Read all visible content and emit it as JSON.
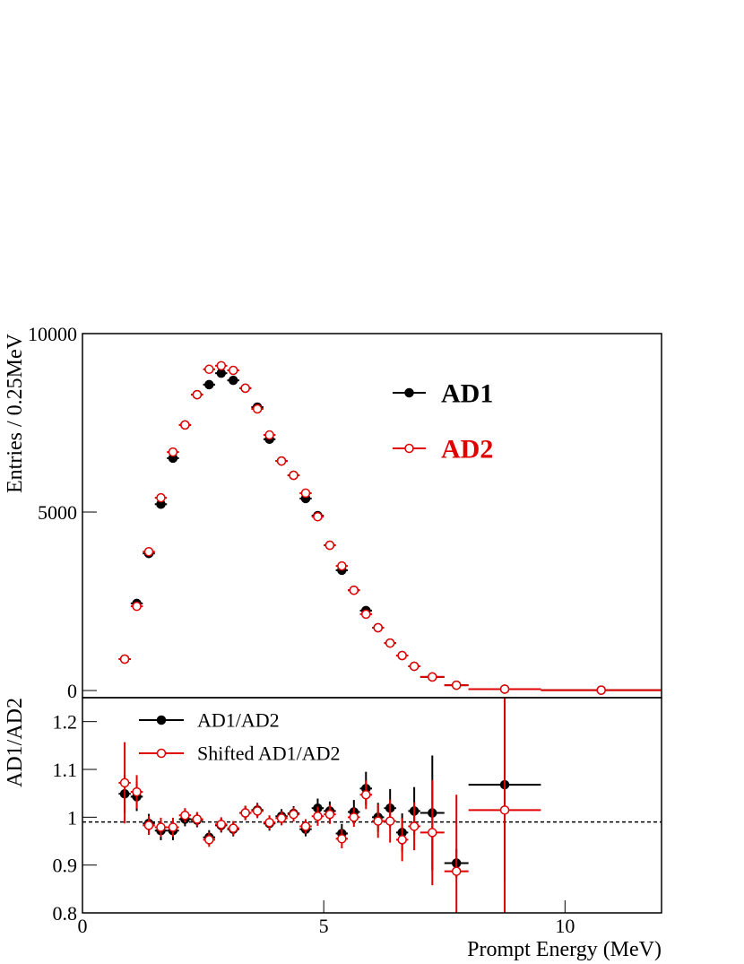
{
  "chart_data": [
    {
      "type": "errorbar",
      "y_label": "Entries / 0.25MeV",
      "xlim": [
        0,
        12
      ],
      "ylim": [
        -200,
        10000
      ],
      "yticks": [
        0,
        5000,
        10000
      ],
      "bins": [
        0.75,
        1,
        1.25,
        1.5,
        1.75,
        2,
        2.25,
        2.5,
        2.75,
        3,
        3.25,
        3.5,
        3.75,
        4,
        4.25,
        4.5,
        4.75,
        5,
        5.25,
        5.5,
        5.75,
        6,
        6.25,
        6.5,
        6.75,
        7,
        7.5,
        8,
        9.5,
        12
      ],
      "x": [
        0.875,
        1.125,
        1.375,
        1.625,
        1.875,
        2.125,
        2.375,
        2.625,
        2.875,
        3.125,
        3.375,
        3.625,
        3.875,
        4.125,
        4.375,
        4.625,
        4.875,
        5.125,
        5.375,
        5.625,
        5.875,
        6.125,
        6.375,
        6.625,
        6.875,
        7.25,
        7.75,
        8.75,
        10.75
      ],
      "series": [
        {
          "name": "AD1",
          "color": "#000000",
          "marker": "filled",
          "values": [
            880,
            2440,
            3840,
            5220,
            6510,
            7440,
            8290,
            8570,
            8890,
            8690,
            8470,
            7940,
            7040,
            6430,
            6030,
            5380,
            4900,
            4070,
            3370,
            2810,
            2240,
            1760,
            1330,
            980,
            680,
            380,
            150,
            40,
            10
          ]
        },
        {
          "name": "AD2",
          "color": "#e00000",
          "marker": "open",
          "values": [
            880,
            2360,
            3890,
            5400,
            6680,
            7440,
            8290,
            9000,
            9100,
            8970,
            8470,
            7890,
            7160,
            6430,
            6030,
            5530,
            4870,
            4070,
            3490,
            2810,
            2140,
            1760,
            1330,
            980,
            680,
            380,
            150,
            40,
            10
          ]
        }
      ]
    },
    {
      "type": "errorbar",
      "y_label": "AD1/AD2",
      "x_label": "Prompt Energy (MeV)",
      "xlim": [
        0,
        12
      ],
      "xticks": [
        0,
        5,
        10
      ],
      "ylim": [
        0.8,
        1.25
      ],
      "yticks": [
        0.8,
        0.9,
        1,
        1.1,
        1.2
      ],
      "reference_line": 0.99,
      "bins": [
        0.75,
        1,
        1.25,
        1.5,
        1.75,
        2,
        2.25,
        2.5,
        2.75,
        3,
        3.25,
        3.5,
        3.75,
        4,
        4.25,
        4.5,
        4.75,
        5,
        5.25,
        5.5,
        5.75,
        6,
        6.25,
        6.5,
        6.75,
        7,
        7.5,
        8,
        9.5
      ],
      "x": [
        0.875,
        1.125,
        1.375,
        1.625,
        1.875,
        2.125,
        2.375,
        2.625,
        2.875,
        3.125,
        3.375,
        3.625,
        3.875,
        4.125,
        4.375,
        4.625,
        4.875,
        5.125,
        5.375,
        5.625,
        5.875,
        6.125,
        6.375,
        6.625,
        6.875,
        7.25,
        7.75,
        8.75
      ],
      "series": [
        {
          "name": "AD1/AD2",
          "color": "#000000",
          "marker": "filled",
          "values": [
            1.049,
            1.043,
            0.987,
            0.972,
            0.972,
            0.996,
            0.994,
            0.958,
            0.983,
            0.975,
            1.009,
            1.015,
            0.987,
            1.002,
            1.008,
            0.975,
            1.019,
            1.013,
            0.966,
            1.011,
            1.06,
            1.0,
            1.019,
            0.968,
            1.013,
            1.009,
            0.904,
            1.068
          ],
          "errors": [
            0.04,
            0.03,
            0.02,
            0.02,
            0.02,
            0.015,
            0.015,
            0.015,
            0.015,
            0.015,
            0.015,
            0.015,
            0.015,
            0.015,
            0.015,
            0.015,
            0.02,
            0.02,
            0.02,
            0.025,
            0.035,
            0.03,
            0.04,
            0.04,
            0.05,
            0.12,
            0.03,
            0.2
          ]
        },
        {
          "name": "Shifted AD1/AD2",
          "color": "#e00000",
          "marker": "open",
          "values": [
            1.072,
            1.053,
            0.983,
            0.979,
            0.979,
            1.004,
            0.996,
            0.953,
            0.985,
            0.977,
            1.009,
            1.013,
            0.989,
            0.998,
            1.006,
            0.981,
            1.002,
            1.006,
            0.955,
            1.0,
            1.047,
            0.992,
            0.992,
            0.953,
            0.981,
            0.968,
            0.887,
            1.015
          ],
          "errors": [
            0.085,
            0.035,
            0.02,
            0.02,
            0.02,
            0.015,
            0.015,
            0.015,
            0.015,
            0.015,
            0.015,
            0.015,
            0.015,
            0.015,
            0.015,
            0.015,
            0.02,
            0.02,
            0.02,
            0.02,
            0.03,
            0.035,
            0.045,
            0.045,
            0.05,
            0.11,
            0.16,
            0.4
          ]
        }
      ]
    }
  ]
}
